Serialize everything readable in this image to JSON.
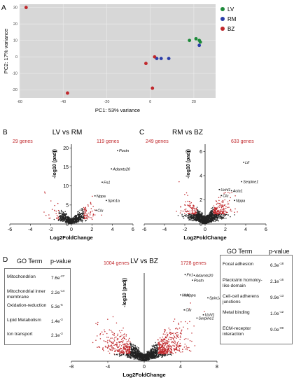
{
  "panels": {
    "a": "A",
    "b": "B",
    "c": "C",
    "d": "D"
  },
  "colors": {
    "LV": "#1e8a3a",
    "RM": "#2b3ea8",
    "BZ": "#c0282c",
    "pca_bg": "#d7d7d7",
    "red": "#c0282c",
    "dot": "#222222"
  },
  "chart_data": [
    {
      "type": "scatter",
      "panel": "A",
      "xlabel": "PC1: 53% variance",
      "ylabel": "PC2: 17% variance",
      "xlim": [
        -60,
        30
      ],
      "ylim": [
        -25,
        32
      ],
      "xticks": [
        -60,
        -40,
        -20,
        0,
        20
      ],
      "yticks": [
        30,
        20,
        10,
        0,
        -10,
        -20
      ],
      "grid": true,
      "legend": "right",
      "series": [
        {
          "name": "LV",
          "color": "#1e8a3a",
          "points": [
            [
              18,
              10
            ],
            [
              21,
              11
            ],
            [
              23,
              9
            ],
            [
              22.5,
              10
            ]
          ]
        },
        {
          "name": "RM",
          "color": "#2b3ea8",
          "points": [
            [
              22.5,
              7
            ],
            [
              3,
              -1
            ],
            [
              5,
              -1
            ],
            [
              8.5,
              -1
            ]
          ]
        },
        {
          "name": "BZ",
          "color": "#c0282c",
          "points": [
            [
              -57,
              30
            ],
            [
              -38,
              -22
            ],
            [
              -2,
              -4
            ],
            [
              2,
              0
            ],
            [
              1,
              -19
            ]
          ]
        }
      ]
    },
    {
      "type": "scatter",
      "panel": "B",
      "title": "LV vs RM",
      "xlabel": "Log2FoldChange",
      "ylabel": "-log10 (padj)",
      "xlim": [
        -6,
        6
      ],
      "ylim": [
        0,
        21
      ],
      "xticks": [
        -6,
        -4,
        -2,
        0,
        2,
        4,
        6
      ],
      "yticks": [
        0,
        5,
        10,
        15,
        20
      ],
      "counts": {
        "down": "29 genes",
        "up": "119 genes"
      },
      "genes": [
        {
          "name": "Postn",
          "x": 4.5,
          "y": 19.3
        },
        {
          "name": "Adamts20",
          "x": 3.9,
          "y": 14.5
        },
        {
          "name": "Fn1",
          "x": 3.0,
          "y": 11.0
        },
        {
          "name": "Nppa",
          "x": 2.3,
          "y": 7.4
        },
        {
          "name": "Spin1a",
          "x": 3.4,
          "y": 6.2
        },
        {
          "name": "Clu",
          "x": 2.4,
          "y": 3.6
        }
      ]
    },
    {
      "type": "scatter",
      "panel": "C",
      "title": "RM vs BZ",
      "xlabel": "Log2FoldChange",
      "ylabel": "-log10 (padj)",
      "xlim": [
        -6,
        6
      ],
      "ylim": [
        0,
        6.6
      ],
      "xticks": [
        -6,
        -4,
        -2,
        0,
        2,
        4,
        6
      ],
      "yticks": [
        0,
        2,
        4,
        6
      ],
      "counts": {
        "down": "249 genes",
        "up": "633 genes"
      },
      "genes": [
        {
          "name": "Lif",
          "x": 3.8,
          "y": 5.1
        },
        {
          "name": "Serpine1",
          "x": 3.6,
          "y": 3.5
        },
        {
          "name": "Uchl1",
          "x": 1.4,
          "y": 2.85
        },
        {
          "name": "Acta1",
          "x": 2.6,
          "y": 2.75
        },
        {
          "name": "Clu",
          "x": 1.6,
          "y": 2.35
        },
        {
          "name": "Nppa",
          "x": 2.9,
          "y": 1.95
        }
      ]
    },
    {
      "type": "scatter",
      "panel": "D",
      "title": "LV vs BZ",
      "xlabel": "Log2FoldChange",
      "ylabel": "-log10 (padj)",
      "xlim": [
        -8,
        8
      ],
      "ylim": [
        0,
        27
      ],
      "xticks": [
        -8,
        -4,
        0,
        4,
        8
      ],
      "yticks": [],
      "counts": {
        "down": "1004 genes",
        "up": "1728 genes"
      },
      "genes": [
        {
          "name": "Fn1",
          "x": 4.5,
          "y": 26.5
        },
        {
          "name": "Adamts20",
          "x": 5.5,
          "y": 26.3
        },
        {
          "name": "Postn",
          "x": 5.3,
          "y": 24.8
        },
        {
          "name": "Msn",
          "x": 4.0,
          "y": 20.3
        },
        {
          "name": "Nppa",
          "x": 4.5,
          "y": 20.2
        },
        {
          "name": "Spin1a",
          "x": 7.0,
          "y": 19.4
        },
        {
          "name": "Clu",
          "x": 4.4,
          "y": 15.7
        },
        {
          "name": "Uchl1",
          "x": 6.5,
          "y": 14.2
        },
        {
          "name": "Serpine1",
          "x": 5.8,
          "y": 13.2
        }
      ]
    }
  ],
  "go_left": {
    "head_term": "GO Term",
    "head_p": "p-value",
    "rows": [
      {
        "term": "Mitochondrion",
        "p": "7.6e",
        "exp": "-27"
      },
      {
        "term": "Mitochondrial inner membrane",
        "p": "2.2e",
        "exp": "-14"
      },
      {
        "term": "Oxidation-reduction",
        "p": "5.3e",
        "exp": "-6"
      },
      {
        "term": "Lipid Metabolism",
        "p": "1.4e",
        "exp": "-3"
      },
      {
        "term": "Ion transport",
        "p": "2.1e",
        "exp": "-3"
      }
    ]
  },
  "go_right": {
    "head_term": "GO Term",
    "head_p": "p-value",
    "rows": [
      {
        "term": "Focal adhesion",
        "p": "6.3e",
        "exp": "-18"
      },
      {
        "term": "Pleckstrin homoloy-like domain",
        "p": "2.1e",
        "exp": "-16"
      },
      {
        "term": "Cell-cell adherens junctions",
        "p": "9.9e",
        "exp": "-13"
      },
      {
        "term": "Metal binding",
        "p": "1.0e",
        "exp": "-12"
      },
      {
        "term": "ECM-receptor interaction",
        "p": "9.0e",
        "exp": "-09"
      }
    ]
  }
}
